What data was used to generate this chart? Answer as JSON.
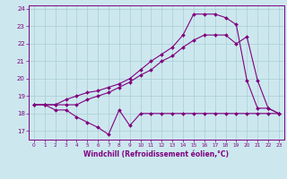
{
  "xlabel": "Windchill (Refroidissement éolien,°C)",
  "background_color": "#cce8ee",
  "line_color": "#800080",
  "grid_color": "#aaccd4",
  "hours": [
    0,
    1,
    2,
    3,
    4,
    5,
    6,
    7,
    8,
    9,
    10,
    11,
    12,
    13,
    14,
    15,
    16,
    17,
    18,
    19,
    20,
    21,
    22,
    23
  ],
  "line1_windchill": [
    18.5,
    18.5,
    18.2,
    18.2,
    17.8,
    17.5,
    17.2,
    16.8,
    18.2,
    17.3,
    18.0,
    18.0,
    18.0,
    18.0,
    18.0,
    18.0,
    18.0,
    18.0,
    18.0,
    18.0,
    18.0,
    18.0,
    18.0,
    18.0
  ],
  "line2_temp": [
    18.5,
    18.5,
    18.5,
    18.5,
    18.5,
    18.8,
    19.0,
    19.2,
    19.5,
    19.8,
    20.2,
    20.5,
    21.0,
    21.3,
    21.8,
    22.2,
    22.5,
    22.5,
    22.5,
    22.0,
    22.4,
    19.9,
    18.3,
    18.0
  ],
  "line3_felt": [
    18.5,
    18.5,
    18.5,
    18.8,
    19.0,
    19.2,
    19.3,
    19.5,
    19.7,
    20.0,
    20.5,
    21.0,
    21.4,
    21.8,
    22.5,
    23.7,
    23.7,
    23.7,
    23.5,
    23.1,
    19.9,
    18.3,
    18.3,
    18.0
  ],
  "ylim_min": 16.5,
  "ylim_max": 24.2,
  "yticks": [
    17,
    18,
    19,
    20,
    21,
    22,
    23,
    24
  ]
}
